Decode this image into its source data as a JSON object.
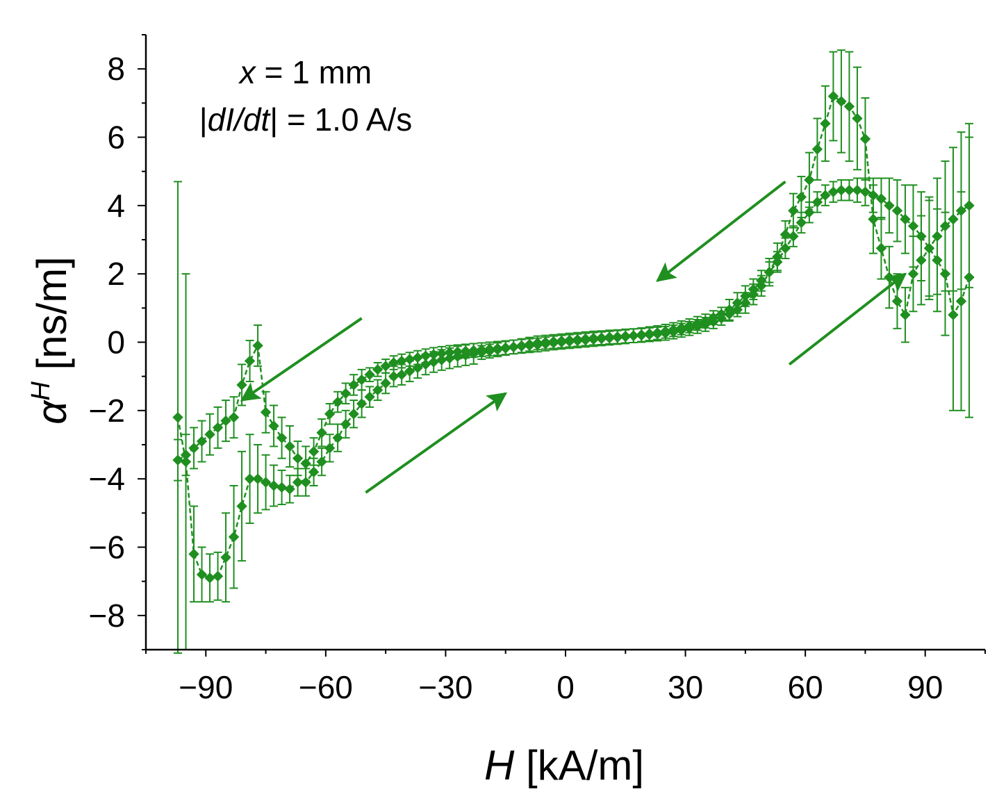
{
  "chart_data": {
    "type": "scatter",
    "title": "",
    "xlabel": {
      "symbol": "H",
      "unit": "[kA/m]"
    },
    "ylabel": {
      "symbol": "α",
      "superscript": "H",
      "unit": "[ns/m]"
    },
    "xlim": [
      -105,
      105
    ],
    "ylim": [
      -9,
      9
    ],
    "x_ticks": [
      -90,
      -60,
      -30,
      0,
      30,
      60,
      90
    ],
    "x_tick_labels": [
      "−90",
      "−60",
      "−30",
      "0",
      "30",
      "60",
      "90"
    ],
    "y_ticks": [
      -8,
      -6,
      -4,
      -2,
      0,
      2,
      4,
      6,
      8
    ],
    "y_tick_labels": [
      "−8",
      "−6",
      "−4",
      "−2",
      "0",
      "2",
      "4",
      "6",
      "8"
    ],
    "color": "#1f8f1f",
    "annotations": [
      {
        "italic": "x",
        "rest": " = 1 mm"
      },
      {
        "pre": "|",
        "italic": "dI/dt",
        "rest": "| = 1.0 A/s"
      }
    ],
    "arrows": [
      {
        "name": "arrow-decreasing-high",
        "from": [
          55,
          4.7
        ],
        "to": [
          23,
          1.8
        ]
      },
      {
        "name": "arrow-decreasing-low",
        "from": [
          -51,
          0.7
        ],
        "to": [
          -81,
          -1.7
        ]
      },
      {
        "name": "arrow-increasing-low",
        "from": [
          -50,
          -4.4
        ],
        "to": [
          -15,
          -1.5
        ]
      },
      {
        "name": "arrow-increasing-high",
        "from": [
          56,
          -0.65
        ],
        "to": [
          85,
          2
        ]
      }
    ],
    "series": [
      {
        "name": "increasing-field-branch",
        "x": [
          -97,
          -95,
          -93,
          -91,
          -89,
          -87,
          -85,
          -83,
          -81,
          -79,
          -77,
          -75,
          -73,
          -71,
          -69,
          -67,
          -65,
          -63,
          -61,
          -59,
          -57,
          -55,
          -53,
          -51,
          -49,
          -47,
          -45,
          -43,
          -41,
          -39,
          -37,
          -35,
          -33,
          -31,
          -29,
          -27,
          -25,
          -23,
          -21,
          -19,
          -17,
          -15,
          -13,
          -11,
          -9,
          -7,
          -5,
          -3,
          -1,
          1,
          3,
          5,
          7,
          9,
          11,
          13,
          15,
          17,
          19,
          21,
          23,
          25,
          27,
          29,
          31,
          33,
          35,
          37,
          39,
          41,
          43,
          45,
          47,
          49,
          51,
          53,
          55,
          57,
          59,
          61,
          63,
          65,
          67,
          69,
          71,
          73,
          75,
          77,
          79,
          81,
          83,
          85,
          87,
          89,
          91,
          93,
          95,
          97,
          99,
          101
        ],
        "y": [
          -2.2,
          -3.5,
          -6.2,
          -6.8,
          -6.9,
          -6.85,
          -6.3,
          -5.7,
          -4.8,
          -4.0,
          -4.0,
          -4.1,
          -4.2,
          -4.25,
          -4.3,
          -4.1,
          -4.1,
          -3.8,
          -3.5,
          -3.1,
          -2.8,
          -2.4,
          -2.1,
          -1.8,
          -1.6,
          -1.4,
          -1.2,
          -1.0,
          -0.95,
          -0.85,
          -0.75,
          -0.65,
          -0.58,
          -0.52,
          -0.47,
          -0.42,
          -0.38,
          -0.34,
          -0.3,
          -0.26,
          -0.22,
          -0.18,
          -0.14,
          -0.1,
          -0.06,
          -0.02,
          0.0,
          0.02,
          0.04,
          0.06,
          0.08,
          0.1,
          0.12,
          0.13,
          0.15,
          0.16,
          0.18,
          0.19,
          0.2,
          0.22,
          0.24,
          0.26,
          0.3,
          0.35,
          0.4,
          0.46,
          0.52,
          0.6,
          0.7,
          0.82,
          0.95,
          1.15,
          1.4,
          1.65,
          2.05,
          2.5,
          3.15,
          3.85,
          4.25,
          4.75,
          5.65,
          6.4,
          7.2,
          7.05,
          6.9,
          6.55,
          5.95,
          3.6,
          2.75,
          1.9,
          1.2,
          0.8,
          2.0,
          2.4,
          2.75,
          3.1,
          3.4,
          3.6,
          3.85,
          4.0
        ],
        "errors": [
          6.9,
          5.5,
          1.4,
          0.8,
          0.7,
          0.7,
          1.3,
          1.5,
          1.6,
          1.3,
          1.0,
          0.8,
          0.6,
          0.5,
          0.4,
          0.4,
          0.4,
          0.4,
          0.4,
          0.4,
          0.4,
          0.4,
          0.4,
          0.4,
          0.3,
          0.3,
          0.3,
          0.3,
          0.3,
          0.3,
          0.3,
          0.3,
          0.3,
          0.3,
          0.3,
          0.3,
          0.3,
          0.3,
          0.2,
          0.2,
          0.2,
          0.2,
          0.2,
          0.2,
          0.2,
          0.2,
          0.2,
          0.2,
          0.2,
          0.2,
          0.2,
          0.2,
          0.2,
          0.2,
          0.2,
          0.2,
          0.2,
          0.2,
          0.2,
          0.2,
          0.2,
          0.2,
          0.2,
          0.2,
          0.2,
          0.2,
          0.2,
          0.2,
          0.2,
          0.2,
          0.2,
          0.3,
          0.3,
          0.3,
          0.4,
          0.4,
          0.4,
          0.5,
          0.6,
          0.8,
          0.9,
          1.1,
          1.3,
          1.5,
          1.6,
          1.5,
          1.2,
          1.0,
          0.9,
          0.9,
          0.8,
          0.8,
          1.1,
          1.3,
          1.5,
          1.7,
          1.9,
          2.1,
          2.3,
          2.4
        ]
      },
      {
        "name": "decreasing-field-branch",
        "x": [
          101,
          99,
          97,
          95,
          93,
          91,
          89,
          87,
          85,
          83,
          81,
          79,
          77,
          75,
          73,
          71,
          69,
          67,
          65,
          63,
          61,
          59,
          57,
          55,
          53,
          51,
          49,
          47,
          45,
          43,
          41,
          39,
          37,
          35,
          33,
          31,
          29,
          27,
          25,
          23,
          21,
          19,
          17,
          15,
          13,
          11,
          9,
          7,
          5,
          3,
          1,
          -1,
          -3,
          -5,
          -7,
          -9,
          -11,
          -13,
          -15,
          -17,
          -19,
          -21,
          -23,
          -25,
          -27,
          -29,
          -31,
          -33,
          -35,
          -37,
          -39,
          -41,
          -43,
          -45,
          -47,
          -49,
          -51,
          -53,
          -55,
          -57,
          -59,
          -61,
          -63,
          -65,
          -67,
          -69,
          -71,
          -73,
          -75,
          -77,
          -79,
          -81,
          -83,
          -85,
          -87,
          -89,
          -91,
          -93,
          -95,
          -97
        ],
        "y": [
          1.9,
          1.2,
          0.8,
          2.0,
          2.4,
          2.75,
          3.1,
          3.4,
          3.6,
          3.85,
          4.0,
          4.2,
          4.3,
          4.4,
          4.45,
          4.45,
          4.45,
          4.4,
          4.3,
          4.1,
          3.8,
          3.5,
          3.1,
          2.75,
          2.35,
          2.05,
          1.8,
          1.55,
          1.35,
          1.15,
          0.95,
          0.82,
          0.72,
          0.62,
          0.55,
          0.48,
          0.42,
          0.37,
          0.32,
          0.28,
          0.25,
          0.22,
          0.19,
          0.16,
          0.14,
          0.12,
          0.1,
          0.08,
          0.06,
          0.04,
          0.02,
          0.0,
          -0.02,
          -0.05,
          -0.08,
          -0.1,
          -0.12,
          -0.14,
          -0.16,
          -0.18,
          -0.2,
          -0.22,
          -0.24,
          -0.26,
          -0.28,
          -0.3,
          -0.33,
          -0.36,
          -0.4,
          -0.45,
          -0.5,
          -0.55,
          -0.6,
          -0.7,
          -0.8,
          -0.95,
          -1.1,
          -1.25,
          -1.5,
          -1.75,
          -2.1,
          -2.65,
          -3.2,
          -3.55,
          -3.4,
          -3.05,
          -2.8,
          -2.45,
          -2.05,
          -0.1,
          -0.55,
          -1.25,
          -2.2,
          -2.3,
          -2.5,
          -2.7,
          -2.9,
          -3.1,
          -3.3,
          -3.45
        ],
        "errors": [
          4.1,
          3.2,
          2.8,
          1.8,
          1.5,
          1.4,
          1.3,
          1.2,
          1.0,
          0.9,
          0.8,
          0.6,
          0.5,
          0.4,
          0.35,
          0.3,
          0.3,
          0.3,
          0.3,
          0.3,
          0.3,
          0.3,
          0.3,
          0.3,
          0.3,
          0.3,
          0.3,
          0.3,
          0.3,
          0.3,
          0.3,
          0.2,
          0.2,
          0.2,
          0.2,
          0.2,
          0.2,
          0.2,
          0.2,
          0.2,
          0.2,
          0.2,
          0.2,
          0.2,
          0.2,
          0.2,
          0.2,
          0.2,
          0.2,
          0.2,
          0.2,
          0.2,
          0.2,
          0.2,
          0.2,
          0.2,
          0.2,
          0.2,
          0.2,
          0.2,
          0.2,
          0.2,
          0.2,
          0.2,
          0.2,
          0.2,
          0.2,
          0.2,
          0.2,
          0.2,
          0.2,
          0.2,
          0.2,
          0.2,
          0.2,
          0.2,
          0.3,
          0.3,
          0.3,
          0.3,
          0.3,
          0.4,
          0.4,
          0.5,
          0.5,
          0.6,
          0.6,
          0.6,
          0.6,
          0.6,
          0.6,
          0.6,
          0.6,
          0.6,
          0.6,
          0.6,
          0.6,
          0.6,
          0.6,
          0.6
        ]
      }
    ]
  }
}
